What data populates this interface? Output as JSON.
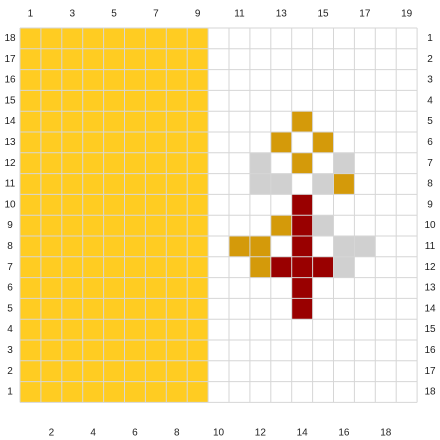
{
  "chart_data": {
    "type": "heatmap",
    "grid": {
      "columns": 19,
      "rows": 18,
      "gridline_color": "#d6d6d6",
      "empty_color": "#ffffff"
    },
    "colors": {
      "Y": "#FFCC22",
      "G": "#D49A0A",
      "R": "#990000",
      "L": "#D0D0D0"
    },
    "cells": [
      "YYYYYYYYY..........",
      "YYYYYYYYY..........",
      "YYYYYYYYY..........",
      "YYYYYYYYY..........",
      "YYYYYYYYY....G.....",
      "YYYYYYYYY...G.G....",
      "YYYYYYYYY..L.G.L...",
      "YYYYYYYYY..LL.LG...",
      "YYYYYYYYY....R.....",
      "YYYYYYYYY...GRL....",
      "YYYYYYYYY.GG.R.LL..",
      "YYYYYYYYY..GRRRL...",
      "YYYYYYYYY....R.....",
      "YYYYYYYYY....R.....",
      "YYYYYYYYY..........",
      "YYYYYYYYY..........",
      "YYYYYYYYY..........",
      "YYYYYYYYY.........."
    ],
    "top_labels": [
      "1",
      "3",
      "5",
      "7",
      "9",
      "11",
      "13",
      "15",
      "17",
      "19"
    ],
    "bottom_labels": [
      "2",
      "4",
      "6",
      "8",
      "10",
      "12",
      "14",
      "16",
      "18"
    ],
    "left_labels": [
      "18",
      "17",
      "16",
      "15",
      "14",
      "13",
      "12",
      "11",
      "10",
      "9",
      "8",
      "7",
      "6",
      "5",
      "4",
      "3",
      "2",
      "1"
    ],
    "right_labels": [
      "1",
      "2",
      "3",
      "4",
      "5",
      "6",
      "7",
      "8",
      "9",
      "10",
      "11",
      "12",
      "13",
      "14",
      "15",
      "16",
      "17",
      "18"
    ]
  }
}
